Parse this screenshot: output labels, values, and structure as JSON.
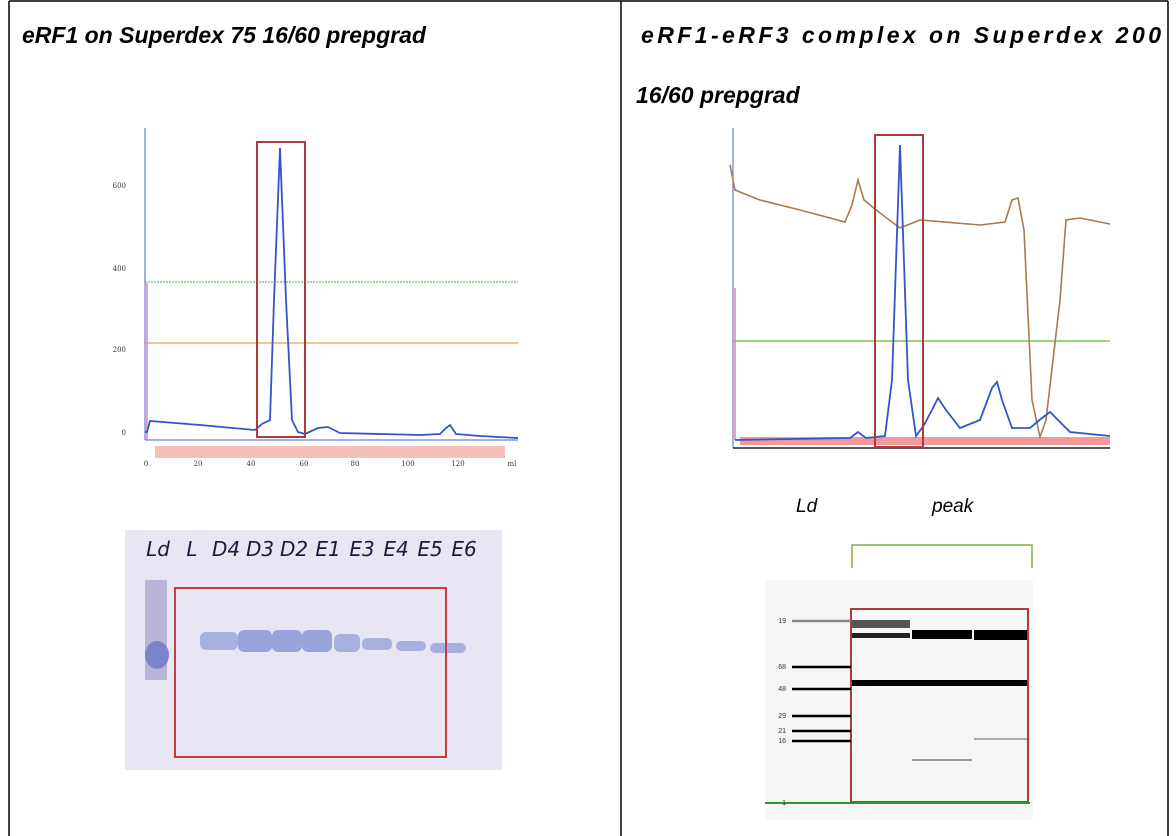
{
  "left": {
    "title": "eRF1 on Superdex 75 16/60 prepgrad",
    "chromatogram": {
      "y_tick_labels": [
        "600",
        "400",
        "200",
        "0"
      ],
      "x_tick_labels": [
        "0",
        "20",
        "40",
        "60",
        "80",
        "100",
        "120",
        "ml"
      ]
    },
    "gel": {
      "lanes": [
        "Ld",
        "L",
        "D4",
        "D3",
        "D2",
        "E1",
        "E3",
        "E4",
        "E5",
        "E6"
      ]
    }
  },
  "right": {
    "title_lines": [
      "eRF1-eRF3  complex  on  Superdex  200",
      "16/60 prepgrad"
    ],
    "gel_labels": [
      "Ld",
      "peak"
    ],
    "ladder_labels": [
      "19",
      "68",
      "48",
      "29",
      "21",
      "16",
      "1"
    ]
  }
}
